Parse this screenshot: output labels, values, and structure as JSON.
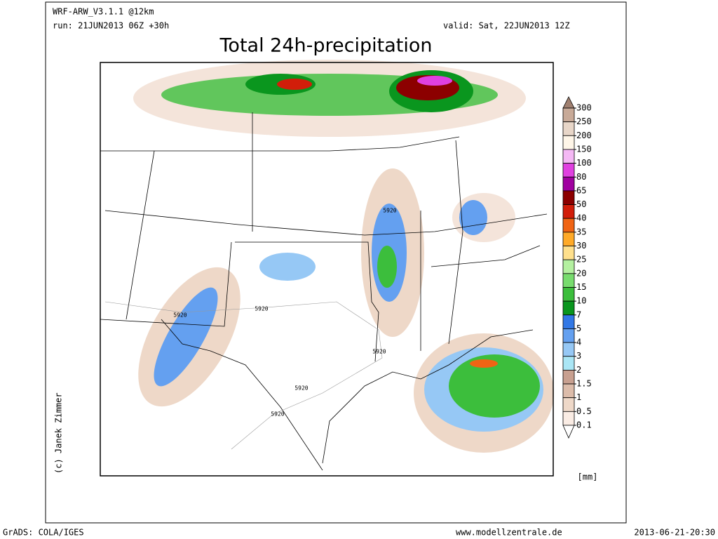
{
  "header": {
    "model": "WRF-ARW_V3.1.1 @12km",
    "run": "run: 21JUN2013 06Z +30h",
    "valid": "valid: Sat, 22JUN2013 12Z",
    "title": "Total 24h-precipitation"
  },
  "credit": "(c) Janek Zimmer",
  "contour_labels": [
    "5920",
    "5920",
    "5920",
    "5920",
    "5920",
    "5920"
  ],
  "legend": {
    "levels": [
      300,
      250,
      200,
      150,
      100,
      80,
      65,
      50,
      40,
      35,
      30,
      25,
      20,
      15,
      10,
      7,
      5,
      4,
      3,
      2,
      1.5,
      1,
      0.5,
      0.1
    ],
    "colors": [
      "#a08070",
      "#c8aa98",
      "#e8d6c8",
      "#fff6e8",
      "#f4b8f4",
      "#e040e0",
      "#a000a0",
      "#8c0000",
      "#d21e0a",
      "#f06414",
      "#ffaa28",
      "#ffe08c",
      "#b4f0a0",
      "#78dc6e",
      "#3cbe3c",
      "#0a961e",
      "#3278e6",
      "#64a0f0",
      "#96c8f5",
      "#aae6f5",
      "#c8a090",
      "#dcbcaa",
      "#eed8c8",
      "#faece4",
      "#ffffff"
    ],
    "unit": "[mm]"
  },
  "footer": {
    "left": "GrADS: COLA/IGES",
    "center": "www.modellzentrale.de",
    "right": "2013-06-21-20:30"
  }
}
